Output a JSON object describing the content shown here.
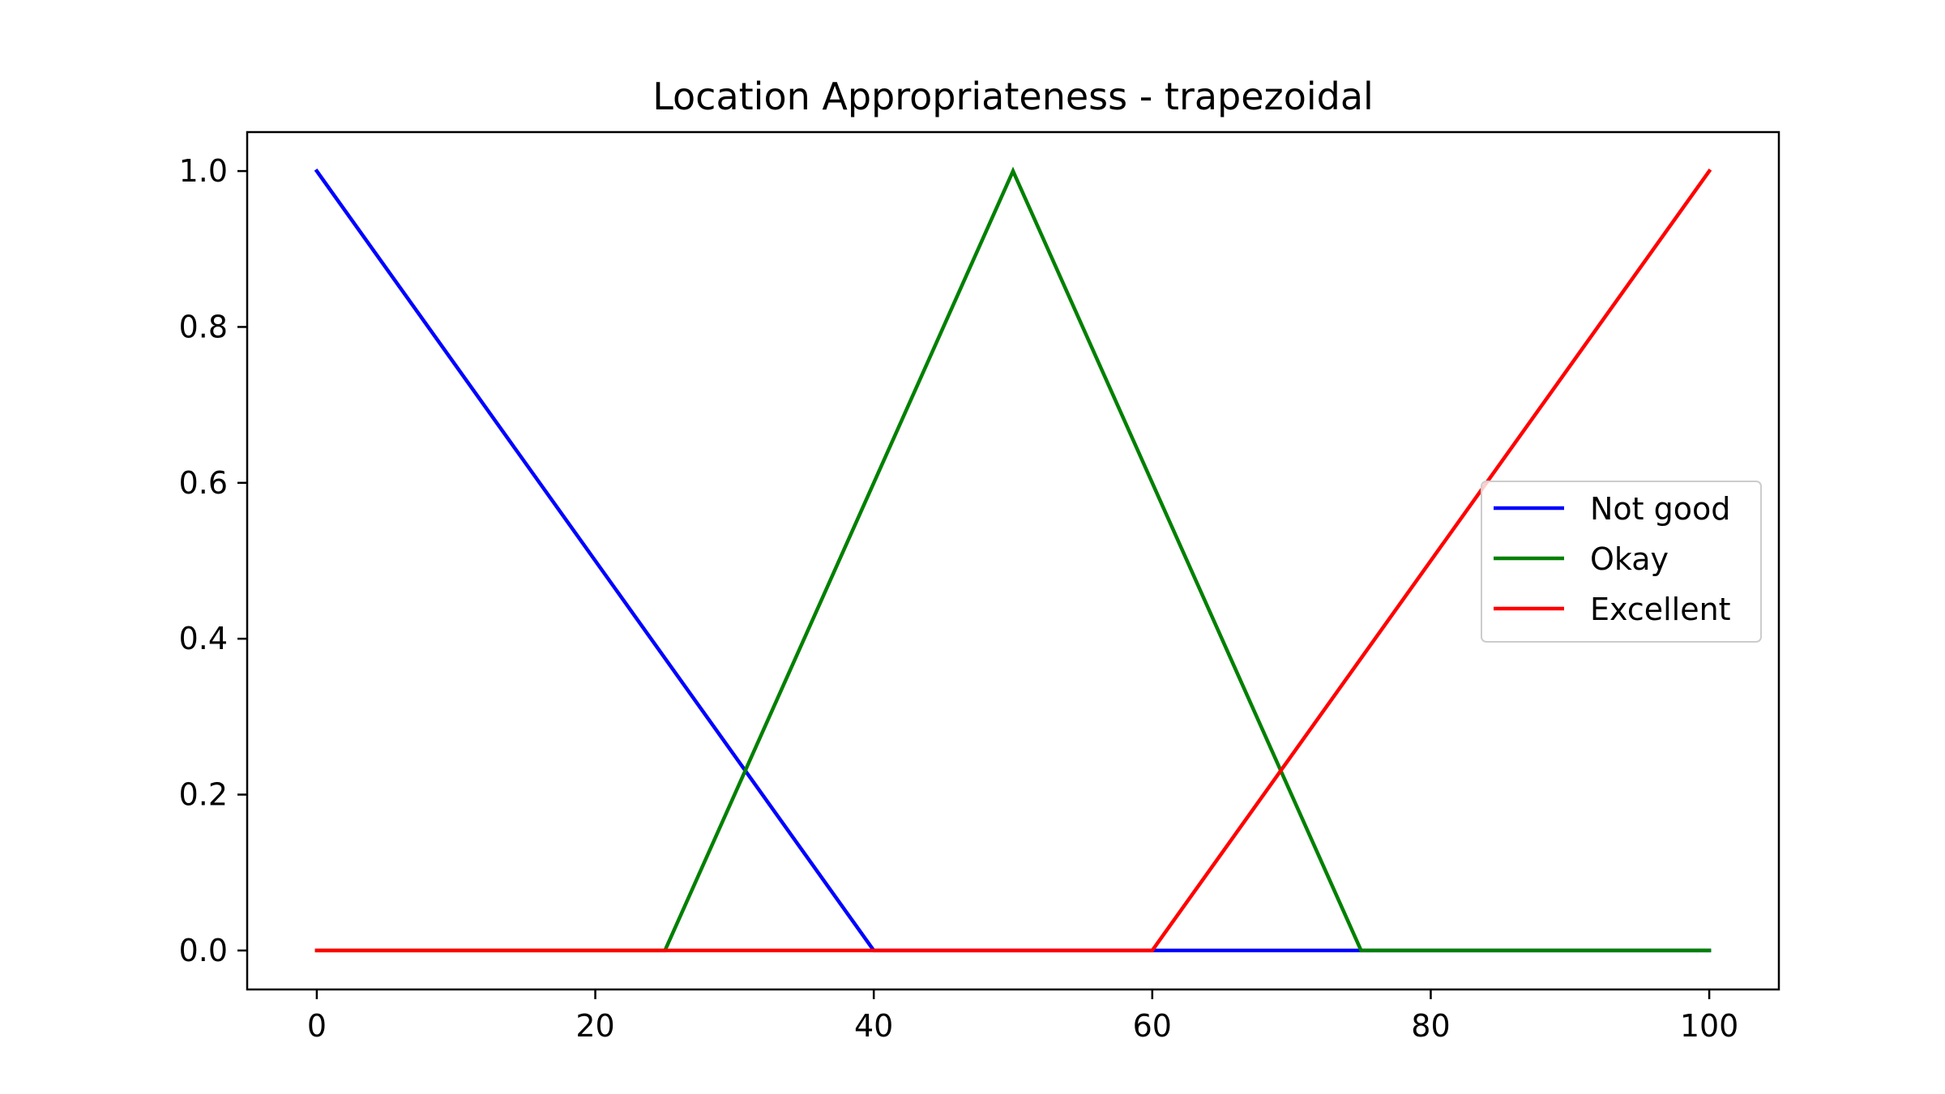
{
  "chart_data": {
    "type": "line",
    "title": "Location Appropriateness - trapezoidal",
    "xlabel": "",
    "ylabel": "",
    "xlim": [
      -5,
      105
    ],
    "ylim": [
      -0.05,
      1.05
    ],
    "xticks": [
      0,
      20,
      40,
      60,
      80,
      100
    ],
    "xtick_labels": [
      "0",
      "20",
      "40",
      "60",
      "80",
      "100"
    ],
    "yticks": [
      0.0,
      0.2,
      0.4,
      0.6,
      0.8,
      1.0
    ],
    "ytick_labels": [
      "0.0",
      "0.2",
      "0.4",
      "0.6",
      "0.8",
      "1.0"
    ],
    "grid": false,
    "legend_position": "center-right",
    "series": [
      {
        "name": "Not good",
        "color": "#0000ff",
        "x": [
          0,
          40,
          100
        ],
        "y": [
          1.0,
          0.0,
          0.0
        ]
      },
      {
        "name": "Okay",
        "color": "#008000",
        "x": [
          0,
          25,
          50,
          75,
          100
        ],
        "y": [
          0.0,
          0.0,
          1.0,
          0.0,
          0.0
        ]
      },
      {
        "name": "Excellent",
        "color": "#ff0000",
        "x": [
          0,
          60,
          100
        ],
        "y": [
          0.0,
          0.0,
          1.0
        ]
      }
    ]
  }
}
